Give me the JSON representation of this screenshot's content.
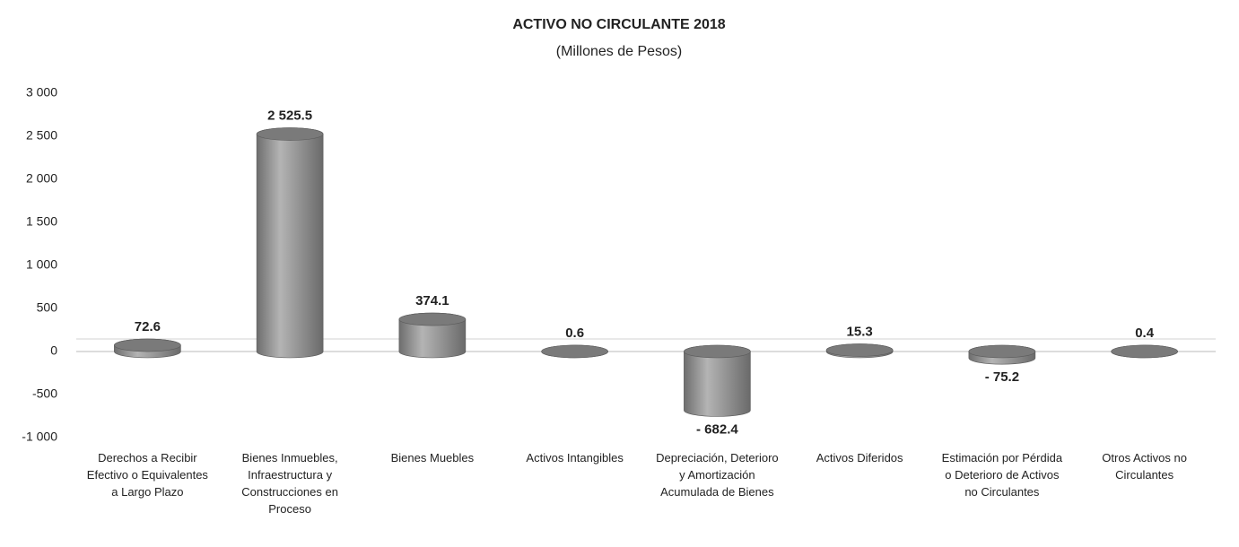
{
  "chart_data": {
    "type": "bar",
    "title": "ACTIVO NO CIRCULANTE 2018",
    "subtitle": "(Millones de Pesos)",
    "categories": [
      "Derechos a Recibir Efectivo o Equivalentes a Largo Plazo",
      "Bienes Inmuebles, Infraestructura y Construcciones en Proceso",
      "Bienes Muebles",
      "Activos Intangibles",
      "Depreciación, Deterioro y Amortización Acumulada de Bienes",
      "Activos Diferidos",
      "Estimación por Pérdida o Deterioro de Activos no Circulantes",
      "Otros Activos no Circulantes"
    ],
    "values": [
      72.6,
      2525.5,
      374.1,
      0.6,
      -682.4,
      15.3,
      -75.2,
      0.4
    ],
    "value_labels": [
      "72.6",
      "2 525.5",
      "374.1",
      "0.6",
      "- 682.4",
      "15.3",
      "- 75.2",
      "0.4"
    ],
    "color": "#8c8c8c",
    "ylim": [
      -1000,
      3000
    ],
    "yticks": [
      {
        "value": -1000,
        "label": "-1 000"
      },
      -500,
      0,
      500,
      {
        "value": 1000,
        "label": "1 000"
      },
      {
        "value": 1500,
        "label": "1 500"
      },
      {
        "value": 2000,
        "label": "2 000"
      },
      {
        "value": 2500,
        "label": "2 500"
      },
      {
        "value": 3000,
        "label": "3 000"
      }
    ],
    "grid": false
  }
}
